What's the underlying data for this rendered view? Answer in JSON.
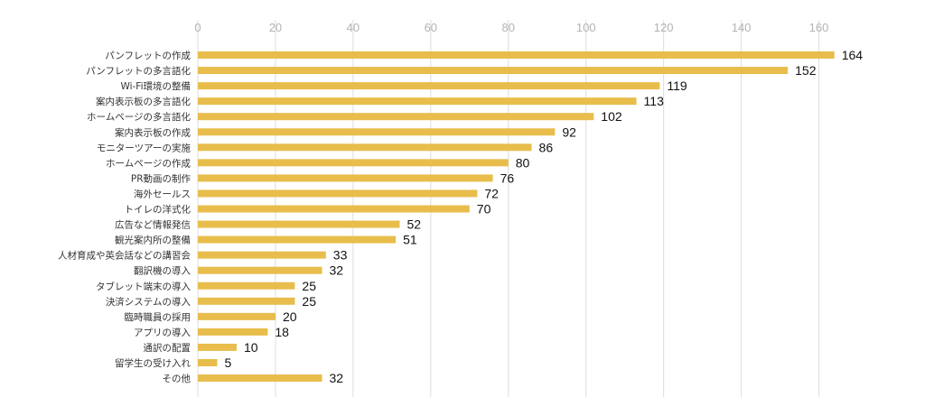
{
  "chart_data": {
    "type": "bar",
    "orientation": "horizontal",
    "categories": [
      "パンフレットの作成",
      "パンフレットの多言語化",
      "Wi-Fi環境の整備",
      "案内表示板の多言語化",
      "ホームページの多言語化",
      "案内表示板の作成",
      "モニターツアーの実施",
      "ホームページの作成",
      "PR動画の制作",
      "海外セールス",
      "トイレの洋式化",
      "広告など情報発信",
      "観光案内所の整備",
      "人材育成や英会話などの講習会",
      "翻訳機の導入",
      "タブレット端末の導入",
      "決済システムの導入",
      "臨時職員の採用",
      "アプリの導入",
      "通訳の配置",
      "留学生の受け入れ",
      "その他"
    ],
    "values": [
      164,
      152,
      119,
      113,
      102,
      92,
      86,
      80,
      76,
      72,
      70,
      52,
      51,
      33,
      32,
      25,
      25,
      20,
      18,
      10,
      5,
      32
    ],
    "xlim": [
      0,
      165
    ],
    "x_ticks": [
      "0",
      "20",
      "40",
      "60",
      "80",
      "100",
      "120",
      "140",
      "160"
    ],
    "x_tick_values": [
      0,
      20,
      40,
      60,
      80,
      100,
      120,
      140,
      160
    ],
    "x_axis_position": "top",
    "grid": true,
    "legend": "none",
    "bar_color": "#e8bd4c",
    "data_labels": true
  }
}
